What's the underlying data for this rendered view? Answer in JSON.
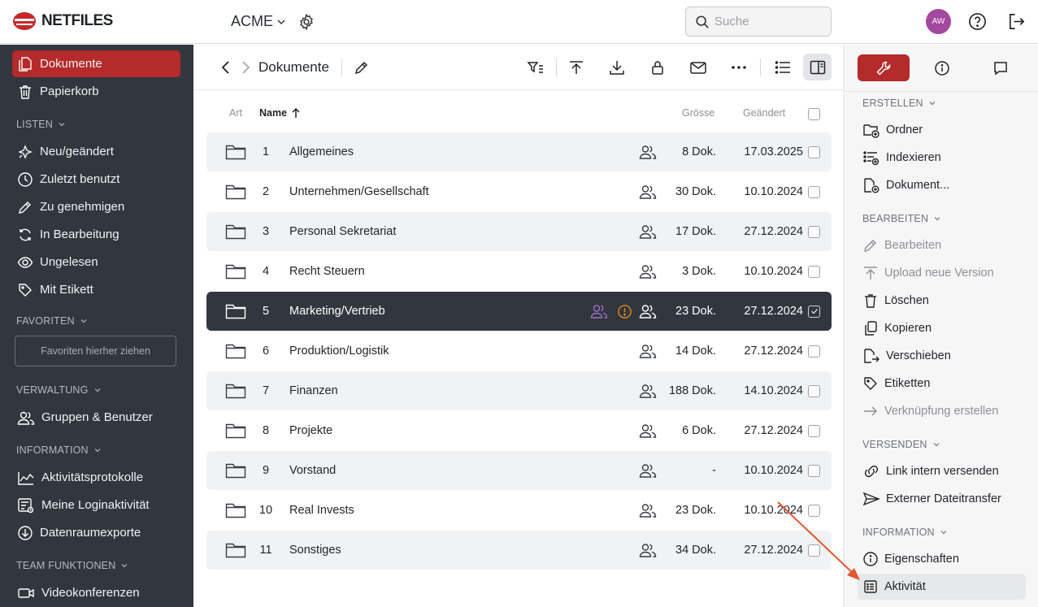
{
  "header": {
    "logo_text": "NETFILES",
    "org_name": "ACME",
    "search_placeholder": "Suche",
    "avatar_initials": "AW"
  },
  "sidebar": {
    "top_items": [
      {
        "label": "Dokumente",
        "icon": "documents-icon",
        "active": true
      },
      {
        "label": "Papierkorb",
        "icon": "trash-icon"
      }
    ],
    "sections": {
      "listen": "LISTEN",
      "favoriten": "FAVORITEN",
      "verwaltung": "VERWALTUNG",
      "information": "INFORMATION",
      "team": "TEAM FUNKTIONEN"
    },
    "listen_items": [
      {
        "label": "Neu/geändert",
        "icon": "sparkle-icon"
      },
      {
        "label": "Zuletzt benutzt",
        "icon": "clock-icon"
      },
      {
        "label": "Zu genehmigen",
        "icon": "pen-icon"
      },
      {
        "label": "In Bearbeitung",
        "icon": "refresh-icon"
      },
      {
        "label": "Ungelesen",
        "icon": "eye-icon"
      },
      {
        "label": "Mit Etikett",
        "icon": "tag-icon"
      }
    ],
    "favorites_dropzone": "Favoriten hierher ziehen",
    "verwaltung_items": [
      {
        "label": "Gruppen & Benutzer",
        "icon": "users-icon"
      }
    ],
    "information_items": [
      {
        "label": "Aktivitätsprotokolle",
        "icon": "activity-chart-icon"
      },
      {
        "label": "Meine Loginaktivität",
        "icon": "login-list-icon"
      },
      {
        "label": "Datenraumexporte",
        "icon": "download-circle-icon"
      }
    ],
    "team_items": [
      {
        "label": "Videokonferenzen",
        "icon": "video-icon"
      }
    ]
  },
  "main": {
    "breadcrumb": "Dokumente",
    "columns": {
      "art": "Art",
      "name": "Name",
      "size": "Grösse",
      "changed": "Geändert"
    },
    "rows": [
      {
        "num": "1",
        "name": "Allgemeines",
        "size": "8 Dok.",
        "date": "17.03.2025"
      },
      {
        "num": "2",
        "name": "Unternehmen/Gesellschaft",
        "size": "30 Dok.",
        "date": "10.10.2024"
      },
      {
        "num": "3",
        "name": "Personal Sekretariat",
        "size": "17 Dok.",
        "date": "27.12.2024"
      },
      {
        "num": "4",
        "name": "Recht Steuern",
        "size": "3 Dok.",
        "date": "10.10.2024"
      },
      {
        "num": "5",
        "name": "Marketing/Vertrieb",
        "size": "23 Dok.",
        "date": "27.12.2024",
        "selected": true
      },
      {
        "num": "6",
        "name": "Produktion/Logistik",
        "size": "14 Dok.",
        "date": "27.12.2024"
      },
      {
        "num": "7",
        "name": "Finanzen",
        "size": "188 Dok.",
        "date": "14.10.2024"
      },
      {
        "num": "8",
        "name": "Projekte",
        "size": "6 Dok.",
        "date": "27.12.2024"
      },
      {
        "num": "9",
        "name": "Vorstand",
        "size": "-",
        "date": "10.10.2024"
      },
      {
        "num": "10",
        "name": "Real Invests",
        "size": "23 Dok.",
        "date": "10.10.2024"
      },
      {
        "num": "11",
        "name": "Sonstiges",
        "size": "34 Dok.",
        "date": "27.12.2024"
      }
    ]
  },
  "panel": {
    "sections": {
      "erstellen": "ERSTELLEN",
      "bearbeiten": "BEARBEITEN",
      "versenden": "VERSENDEN",
      "information": "INFORMATION"
    },
    "erstellen_items": [
      {
        "label": "Ordner",
        "icon": "folder-plus-icon"
      },
      {
        "label": "Indexieren",
        "icon": "index-plus-icon"
      },
      {
        "label": "Dokument...",
        "icon": "document-plus-icon"
      }
    ],
    "bearbeiten_items": [
      {
        "label": "Bearbeiten",
        "icon": "pen-icon",
        "disabled": true
      },
      {
        "label": "Upload neue Version",
        "icon": "upload-icon",
        "disabled": true
      },
      {
        "label": "Löschen",
        "icon": "trash-icon"
      },
      {
        "label": "Kopieren",
        "icon": "copy-icon"
      },
      {
        "label": "Verschieben",
        "icon": "move-icon"
      },
      {
        "label": "Etiketten",
        "icon": "tag-icon"
      },
      {
        "label": "Verknüpfung erstellen",
        "icon": "arrow-right-icon",
        "disabled": true
      }
    ],
    "versenden_items": [
      {
        "label": "Link intern versenden",
        "icon": "link-icon"
      },
      {
        "label": "Externer Dateitransfer",
        "icon": "send-icon"
      }
    ],
    "information_items": [
      {
        "label": "Eigenschaften",
        "icon": "info-icon"
      },
      {
        "label": "Aktivität",
        "icon": "activity-list-icon",
        "highlighted": true
      }
    ]
  },
  "colors": {
    "brand_red": "#b52a2a",
    "sidebar_bg": "#32363e",
    "avatar_bg": "#a4479f",
    "warning_orange": "#e08a16",
    "shared_purple": "#9d6fc7",
    "annotation_arrow": "#e2562c"
  }
}
